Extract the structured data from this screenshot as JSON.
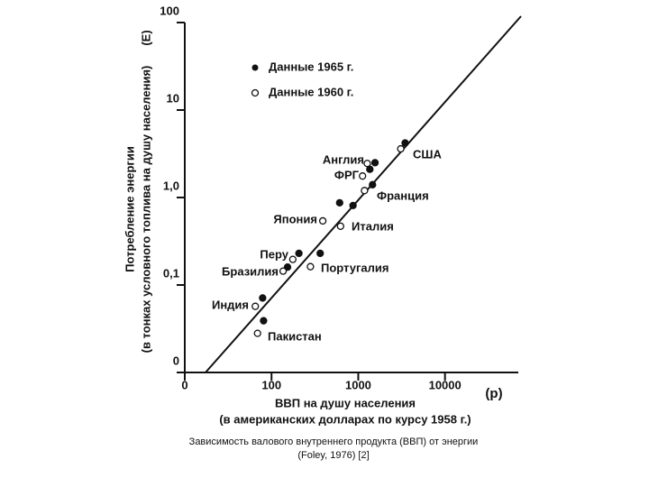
{
  "chart_data": {
    "type": "scatter",
    "x_label": "ВВП на душу населения",
    "x_sublabel": "(в американских долларах по курсу 1958 г.)",
    "x_symbol": "(p)",
    "y_label": "Потребление энергии",
    "y_sublabel": "(в тонках условного топлива на душу населения)",
    "y_symbol": "(E)",
    "caption": "Зависимость валового внутреннего продукта (ВВП) от энергии (Foley, 1976) [2]",
    "log_x": true,
    "log_y": true,
    "xlim": [
      10,
      70000
    ],
    "ylim": [
      0.01,
      100
    ],
    "xticks": [
      {
        "value": 10,
        "label": "0"
      },
      100,
      1000,
      10000
    ],
    "yticks": [
      {
        "value": 0.01,
        "label": "0"
      },
      {
        "value": 0.1,
        "label": "0,1"
      },
      {
        "value": 1,
        "label": "1,0"
      },
      10,
      100
    ],
    "series": [
      {
        "name": "Данные 1965 г.",
        "color": "#111111",
        "filled": true,
        "x": [
          3470,
          1560,
          1360,
          1460,
          870,
          610,
          207,
          153,
          364,
          79,
          81
        ],
        "values": [
          4.2,
          2.5,
          2.1,
          1.4,
          0.81,
          0.87,
          0.23,
          0.16,
          0.23,
          0.071,
          0.039
        ]
      },
      {
        "name": "Данные 1960 г.",
        "color": "#111111",
        "filled": false,
        "x": [
          3090,
          1270,
          1120,
          1180,
          390,
          625,
          176,
          136,
          281,
          65,
          69
        ],
        "values": [
          3.6,
          2.45,
          1.76,
          1.2,
          0.54,
          0.47,
          0.196,
          0.144,
          0.162,
          0.057,
          0.028
        ]
      }
    ],
    "annotations": [
      "США",
      "Англия",
      "ФРГ",
      "Франция",
      "Япония",
      "Италия",
      "Перу",
      "Бразилия",
      "Португалия",
      "Индия",
      "Пакистан"
    ]
  }
}
